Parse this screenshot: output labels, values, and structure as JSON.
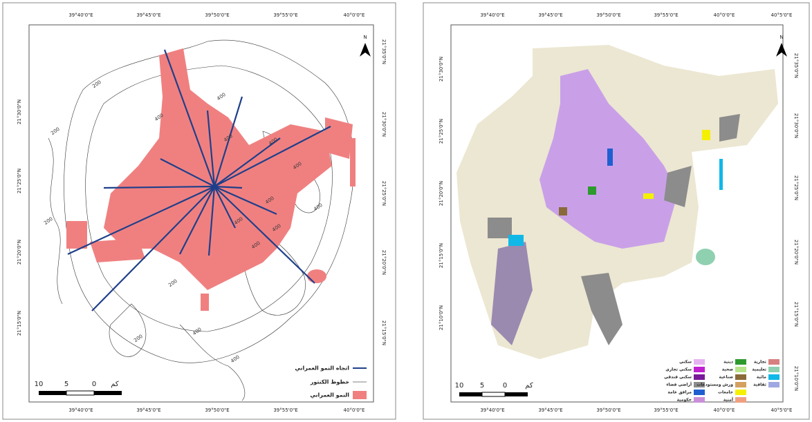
{
  "left_map": {
    "top_labels": [
      "39°40'0\"E",
      "39°45'0\"E",
      "39°50'0\"E",
      "39°55'0\"E",
      "40°0'0\"E"
    ],
    "bottom_labels": [
      "39°40'0\"E",
      "39°45'0\"E",
      "39°50'0\"E",
      "39°55'0\"E",
      "40°0'0\"E"
    ],
    "left_labels": [
      "21°30'0\"N",
      "21°25'0\"N",
      "21°20'0\"N",
      "21°15'0\"N"
    ],
    "right_labels": [
      "21°35'0\"N",
      "21°30'0\"N",
      "21°25'0\"N",
      "21°20'0\"N",
      "21°15'0\"N"
    ],
    "north": "N",
    "legend": [
      "اتجاه النمو العمراني",
      "خطوط الكنتور",
      "النمو العمراني"
    ],
    "scale": {
      "labels": [
        "10",
        "5",
        "0"
      ],
      "unit": "كم"
    },
    "contour_labels": [
      "200",
      "200",
      "400",
      "400",
      "400",
      "400",
      "400",
      "400",
      "400",
      "400",
      "200",
      "400",
      "200",
      "400",
      "400",
      "400",
      "200"
    ]
  },
  "right_map": {
    "top_labels": [
      "39°40'0\"E",
      "39°45'0\"E",
      "39°50'0\"E",
      "39°55'0\"E",
      "40°0'0\"E",
      "40°5'0\"E"
    ],
    "bottom_labels": [
      "39°40'0\"E",
      "39°45'0\"E",
      "39°50'0\"E",
      "39°55'0\"E",
      "40°0'0\"E",
      "40°5'0\"E"
    ],
    "left_labels": [
      "21°30'0\"N",
      "21°25'0\"N",
      "21°20'0\"N",
      "21°15'0\"N",
      "21°10'0\"N"
    ],
    "right_labels": [
      "21°35'0\"N",
      "21°30'0\"N",
      "21°25'0\"N",
      "21°20'0\"N",
      "21°15'0\"N",
      "21°10'0\"N"
    ],
    "north": "N",
    "legend": [
      {
        "label": "سكني",
        "color": "#e6b3f0"
      },
      {
        "label": "سكني تجاري",
        "color": "#c020d0"
      },
      {
        "label": "سكني فندقي",
        "color": "#7a1a9a"
      },
      {
        "label": "أراضي فضاء",
        "color": "#8c8c8c"
      },
      {
        "label": "مرافق عامة",
        "color": "#1f5fd0"
      },
      {
        "label": "حكومية",
        "color": "#c98fd8"
      },
      {
        "label": "دينية",
        "color": "#2e9a2e"
      },
      {
        "label": "صحية",
        "color": "#b7e48a"
      },
      {
        "label": "صناعية",
        "color": "#8a6a3a"
      },
      {
        "label": "ورش ومستودعات",
        "color": "#d4a060"
      },
      {
        "label": "جامعات",
        "color": "#f5f000"
      },
      {
        "label": "أمنية",
        "color": "#f0a080"
      },
      {
        "label": "تجارية",
        "color": "#d88080"
      },
      {
        "label": "تعليمية",
        "color": "#8fd0b0"
      },
      {
        "label": "مائية",
        "color": "#10b8e8"
      },
      {
        "label": "ثقافية",
        "color": "#9fa8e0"
      }
    ],
    "scale": {
      "labels": [
        "10",
        "5",
        "0"
      ],
      "unit": "كم"
    }
  }
}
